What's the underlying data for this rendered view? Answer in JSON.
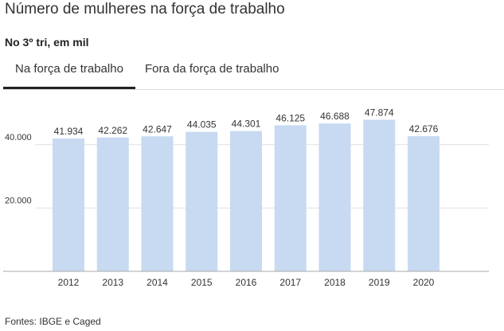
{
  "header": {
    "title": "Número de mulheres na força de trabalho",
    "subtitle": "No 3º tri, em mil"
  },
  "tabs": [
    {
      "label": "Na força de trabalho",
      "active": true
    },
    {
      "label": "Fora da força de trabalho",
      "active": false
    }
  ],
  "footer": {
    "source": "Fontes: IBGE e Caged"
  },
  "colors": {
    "bar": "#c7daf1",
    "grid": "#e1e1e1",
    "text": "#333333"
  },
  "chart_data": {
    "type": "bar",
    "categories": [
      "2012",
      "2013",
      "2014",
      "2015",
      "2016",
      "2017",
      "2018",
      "2019",
      "2020"
    ],
    "values": [
      41934,
      42262,
      42647,
      44035,
      44301,
      46125,
      46688,
      47874,
      42676
    ],
    "value_labels": [
      "41.934",
      "42.262",
      "42.647",
      "44.035",
      "44.301",
      "46.125",
      "46.688",
      "47.874",
      "42.676"
    ],
    "yticks": [
      20000,
      40000
    ],
    "ytick_labels": [
      "20.000",
      "40.000"
    ],
    "ylim": [
      0,
      50000
    ],
    "grid": true
  }
}
